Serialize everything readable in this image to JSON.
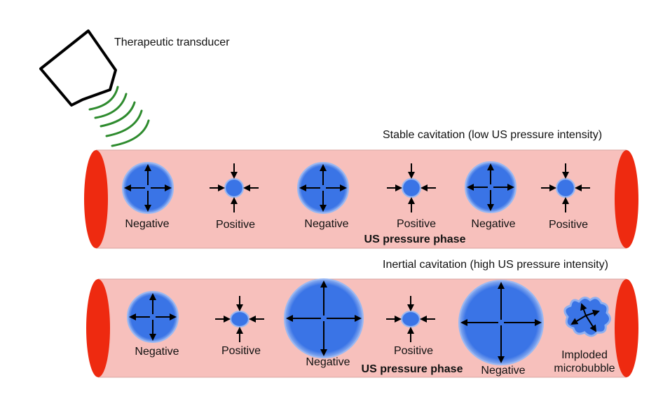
{
  "transducer": {
    "label": "Therapeutic transducer"
  },
  "stable": {
    "title": "Stable cavitation (low US pressure intensity)",
    "phase_label": "US pressure phase",
    "bubbles": [
      {
        "label": "Negative"
      },
      {
        "label": "Positive"
      },
      {
        "label": "Negative"
      },
      {
        "label": "Positive"
      },
      {
        "label": "Negative"
      },
      {
        "label": "Positive"
      }
    ]
  },
  "inertial": {
    "title": "Inertial cavitation (high US pressure intensity)",
    "phase_label": "US pressure phase",
    "bubbles": [
      {
        "label": "Negative"
      },
      {
        "label": "Positive"
      },
      {
        "label": "Negative"
      },
      {
        "label": "Positive"
      },
      {
        "label": "Negative"
      },
      {
        "label": "Imploded",
        "label2": "microbubble"
      }
    ]
  },
  "colors": {
    "vessel": "#f7c0bc",
    "vessel_end": "#ee2a10",
    "bubble": "#3a74e6",
    "wave": "#2e8b2e"
  }
}
